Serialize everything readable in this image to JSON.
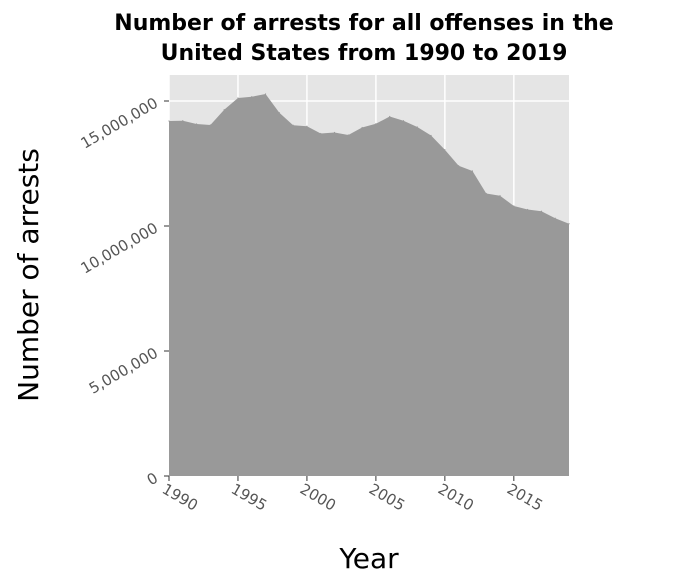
{
  "chart_data": {
    "type": "area",
    "title_lines": [
      "Number of arrests for all offenses in the",
      "United States from 1990 to 2019"
    ],
    "xlabel": "Year",
    "ylabel": "Number of arrests",
    "xlim": [
      1990,
      2019
    ],
    "ylim": [
      0,
      15000000
    ],
    "x_ticks": [
      1990,
      1995,
      2000,
      2005,
      2010,
      2015
    ],
    "x_tick_labels": [
      "1990",
      "1995",
      "2000",
      "2005",
      "2010",
      "2015"
    ],
    "y_ticks": [
      0,
      5000000,
      10000000,
      15000000
    ],
    "y_tick_labels": [
      "0",
      "5,000,000",
      "10,000,000",
      "15,000,000"
    ],
    "grid": true,
    "colors": {
      "area": "#999999",
      "panel": "#e5e5e5",
      "grid": "#ffffff"
    },
    "x": [
      1990,
      1991,
      1992,
      1993,
      1994,
      1995,
      1996,
      1997,
      1998,
      1999,
      2000,
      2001,
      2002,
      2003,
      2004,
      2005,
      2006,
      2007,
      2008,
      2009,
      2010,
      2011,
      2012,
      2013,
      2014,
      2015,
      2016,
      2017,
      2018,
      2019
    ],
    "values": [
      14200000,
      14210000,
      14080000,
      14040000,
      14650000,
      15120000,
      15170000,
      15280000,
      14530000,
      14030000,
      13990000,
      13700000,
      13740000,
      13640000,
      13940000,
      14090000,
      14380000,
      14210000,
      13960000,
      13620000,
      13050000,
      12410000,
      12200000,
      11300000,
      11210000,
      10800000,
      10660000,
      10590000,
      10310000,
      10090000
    ]
  }
}
